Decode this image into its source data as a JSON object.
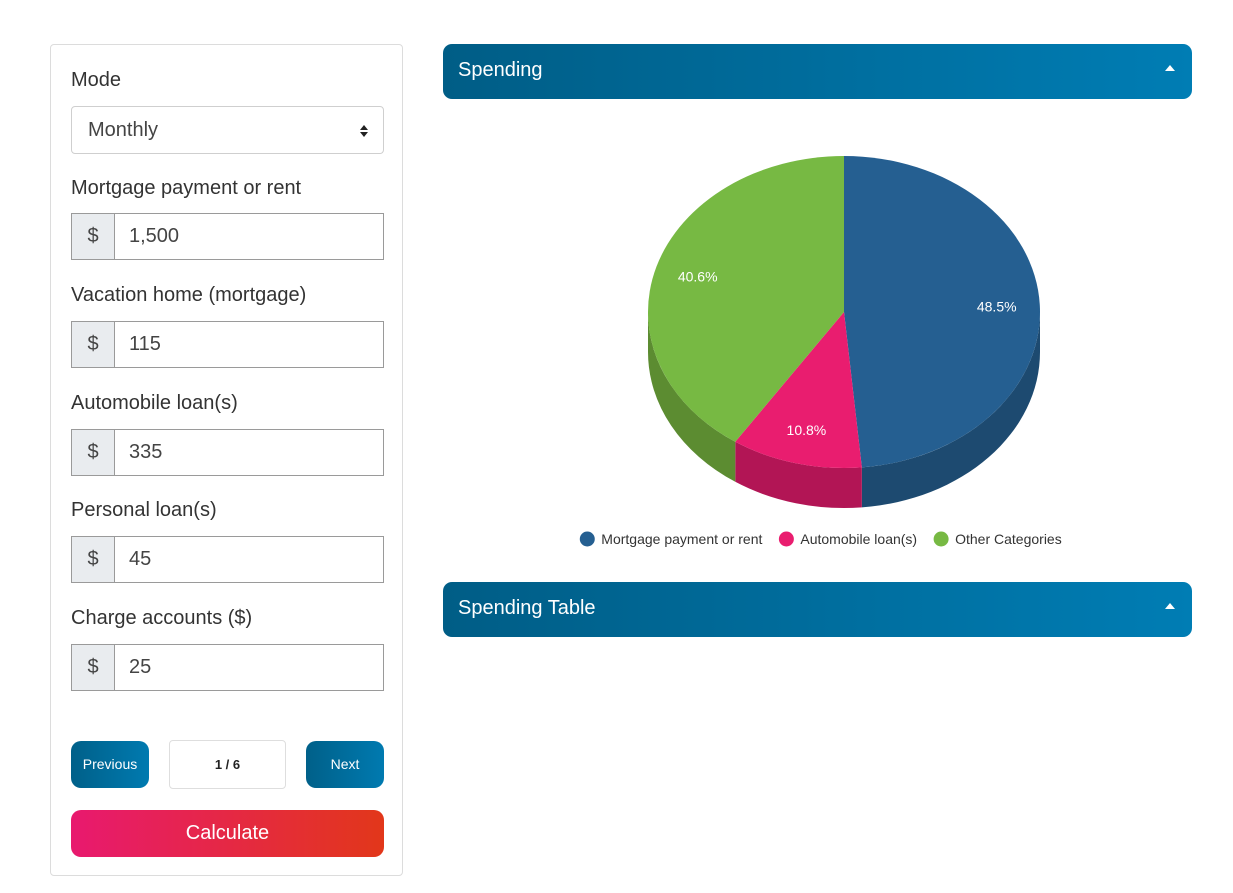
{
  "form": {
    "mode_label": "Mode",
    "mode_value": "Monthly",
    "fields": [
      {
        "label": "Mortgage payment or rent",
        "prefix": "$",
        "value": "1,500"
      },
      {
        "label": "Vacation home (mortgage)",
        "prefix": "$",
        "value": "115"
      },
      {
        "label": "Automobile loan(s)",
        "prefix": "$",
        "value": "335"
      },
      {
        "label": "Personal loan(s)",
        "prefix": "$",
        "value": "45"
      },
      {
        "label": "Charge accounts ($)",
        "prefix": "$",
        "value": "25"
      }
    ],
    "previous_label": "Previous",
    "page_indicator": "1 / 6",
    "next_label": "Next",
    "calculate_label": "Calculate"
  },
  "sections": {
    "spending_title": "Spending",
    "table_title": "Spending Table"
  },
  "colors": {
    "header_start": "#005d86",
    "header_end": "#007db4",
    "calculate_start": "#e8196f",
    "calculate_end": "#e2371a"
  },
  "chart_data": {
    "type": "pie",
    "style": "3d",
    "series": [
      {
        "name": "Mortgage payment or rent",
        "value": 48.5,
        "label": "48.5%",
        "color": "#255f91",
        "side_color": "#1d4a70"
      },
      {
        "name": "Automobile loan(s)",
        "value": 10.8,
        "label": "10.8%",
        "color": "#e91d6f",
        "side_color": "#b21555"
      },
      {
        "name": "Other Categories",
        "value": 40.6,
        "label": "40.6%",
        "color": "#77b943",
        "side_color": "#5c8c31"
      }
    ],
    "legend_position": "bottom"
  }
}
